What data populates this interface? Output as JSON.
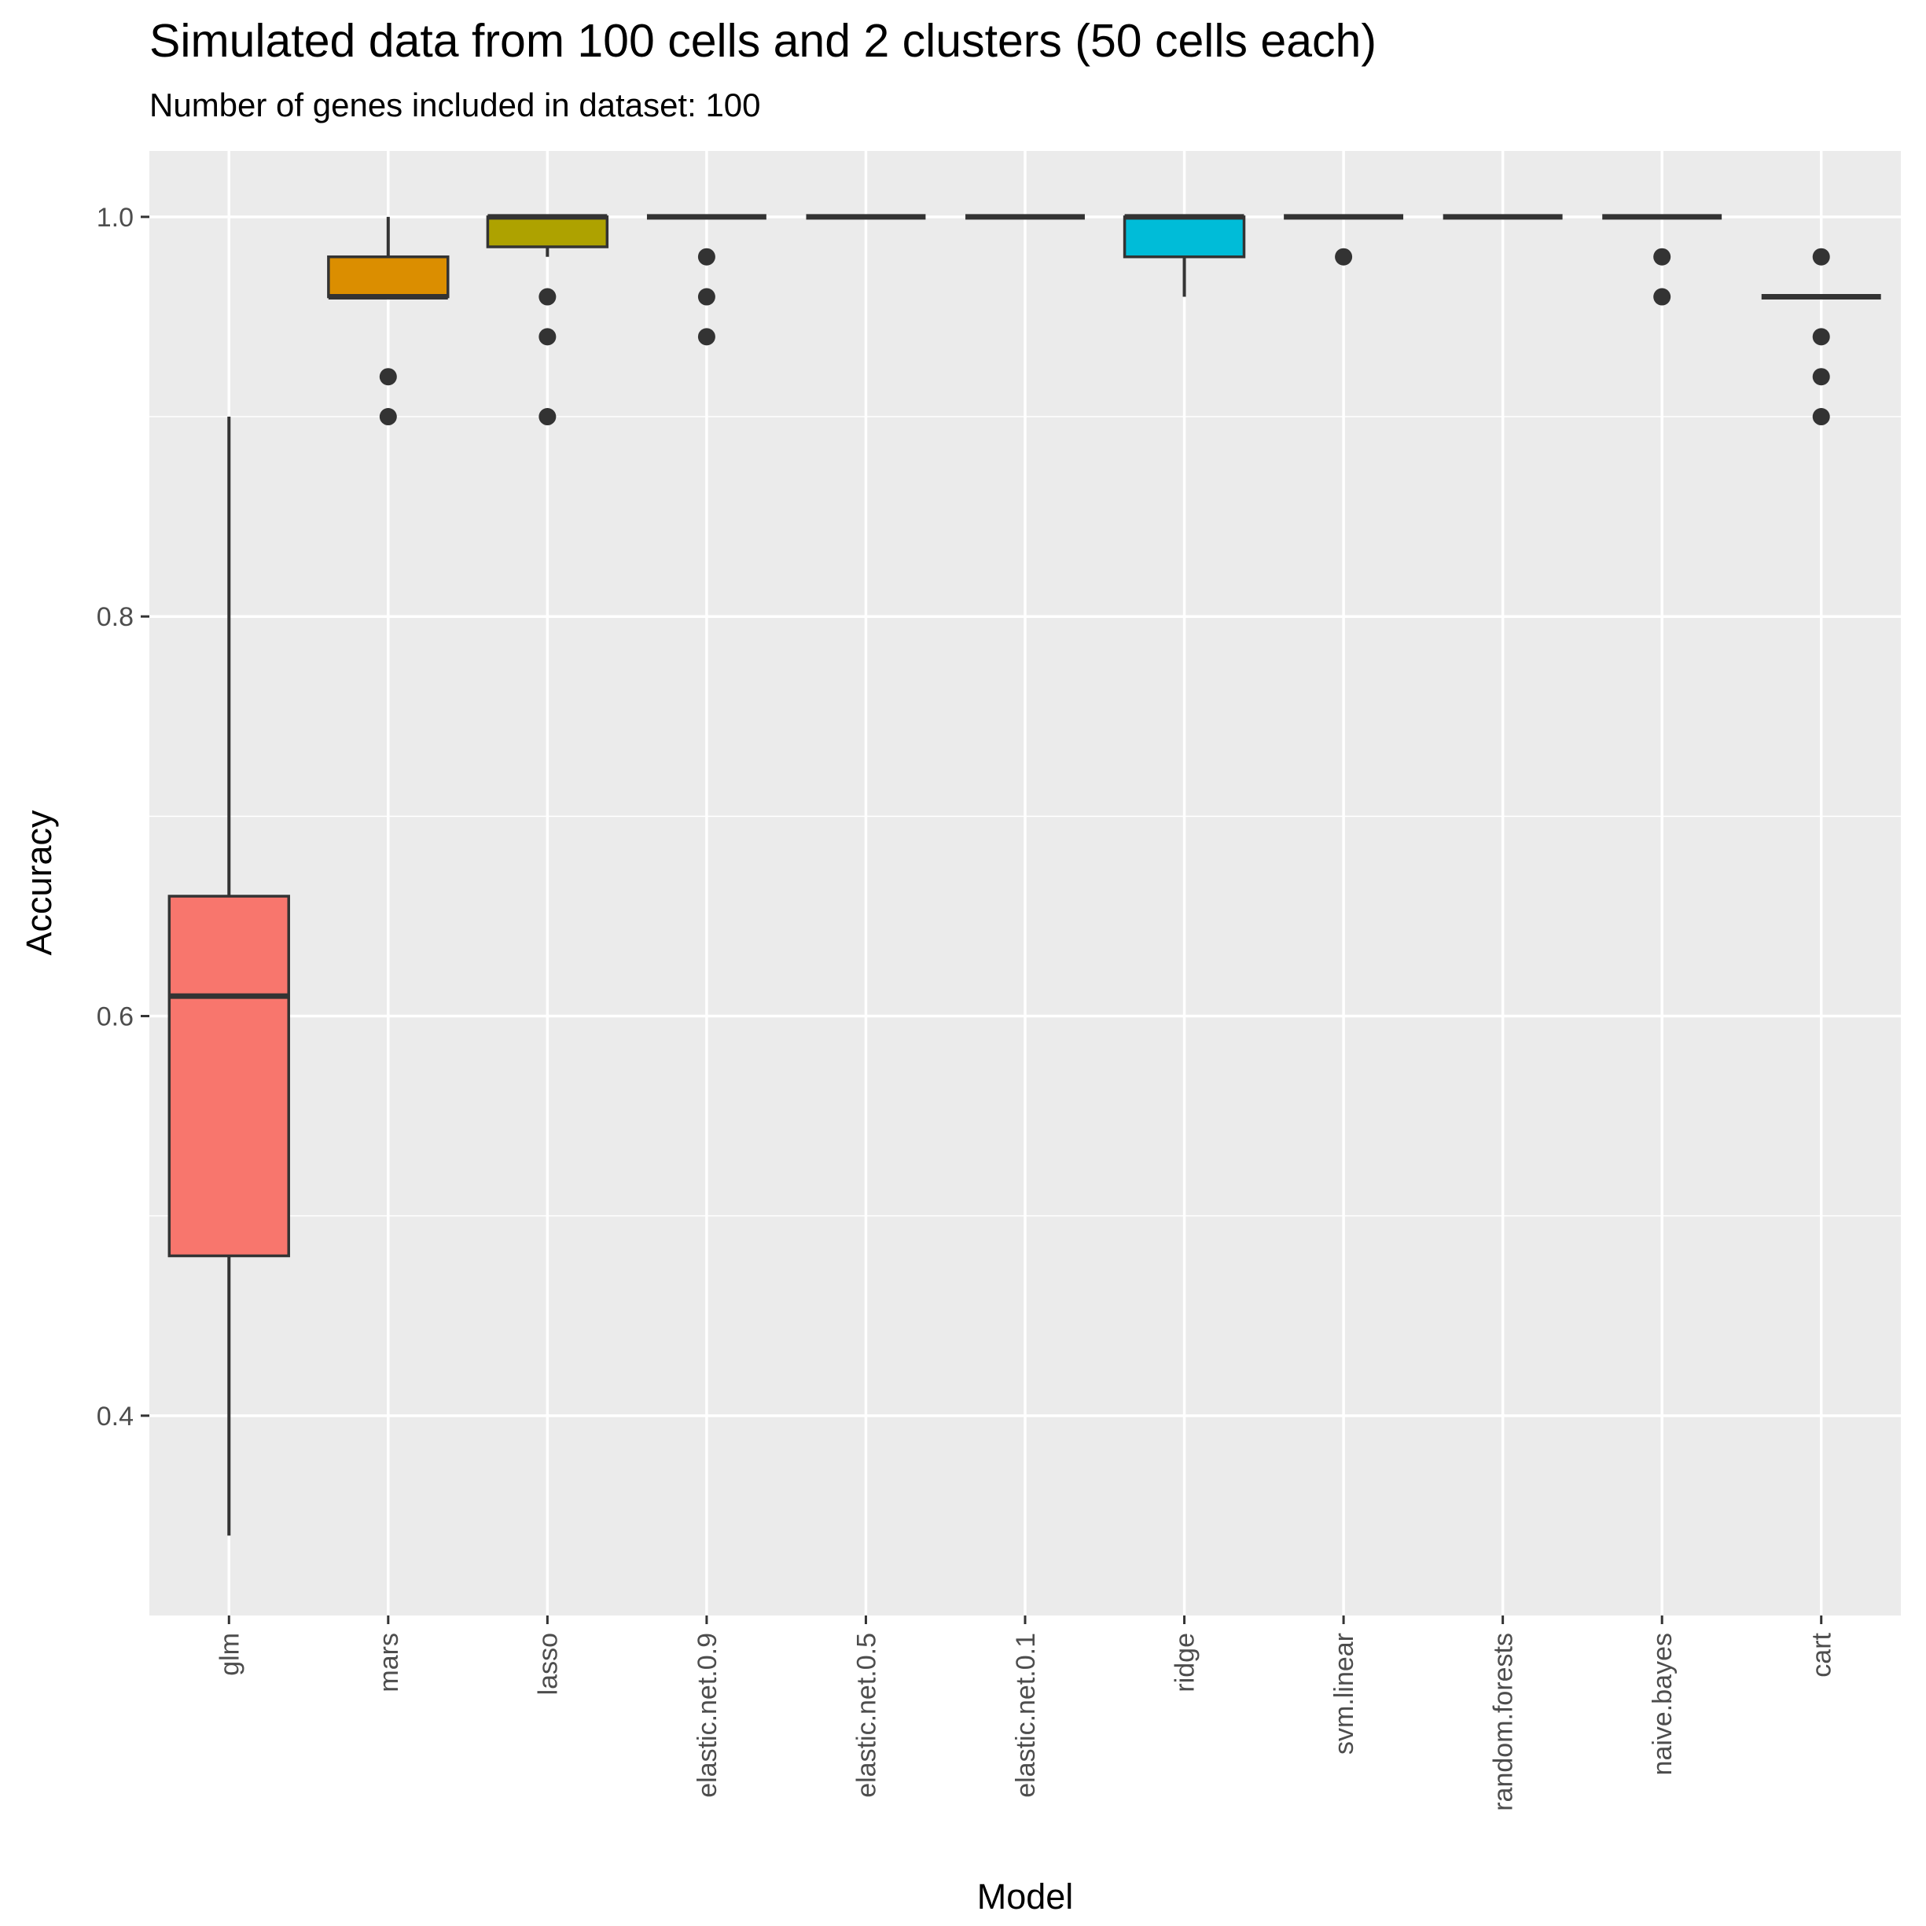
{
  "chart_data": {
    "type": "boxplot",
    "title": "Simulated data from 100 cells and 2 clusters (50 cells each)",
    "subtitle": "Number of genes included in dataset: 100",
    "xlabel": "Model",
    "ylabel": "Accuracy",
    "ylim": [
      0.3,
      1.033
    ],
    "yticks": [
      0.4,
      0.6,
      0.8,
      1.0
    ],
    "ytick_labels": [
      "0.4",
      "0.6",
      "0.8",
      "1.0"
    ],
    "grid": true,
    "legend": "none",
    "categories": [
      "glm",
      "mars",
      "lasso",
      "elastic.net.0.9",
      "elastic.net.0.5",
      "elastic.net.0.1",
      "ridge",
      "svm.linear",
      "random.forests",
      "naive.bayes",
      "cart"
    ],
    "boxes": [
      {
        "category": "glm",
        "min": 0.34,
        "q1": 0.48,
        "median": 0.61,
        "q3": 0.66,
        "max": 0.9,
        "outliers": [],
        "color": "#F8766D"
      },
      {
        "category": "mars",
        "min": 0.96,
        "q1": 0.96,
        "median": 0.96,
        "q3": 0.98,
        "max": 1.0,
        "outliers": [
          0.92,
          0.9
        ],
        "color": "#DB8E00"
      },
      {
        "category": "lasso",
        "min": 0.98,
        "q1": 0.985,
        "median": 1.0,
        "q3": 1.0,
        "max": 1.0,
        "outliers": [
          0.96,
          0.94,
          0.9
        ],
        "color": "#AEA200"
      },
      {
        "category": "elastic.net.0.9",
        "min": 1.0,
        "q1": 1.0,
        "median": 1.0,
        "q3": 1.0,
        "max": 1.0,
        "outliers": [
          0.98,
          0.96,
          0.94
        ],
        "color": "#5EB300"
      },
      {
        "category": "elastic.net.0.5",
        "min": 1.0,
        "q1": 1.0,
        "median": 1.0,
        "q3": 1.0,
        "max": 1.0,
        "outliers": [],
        "color": "#00BA38"
      },
      {
        "category": "elastic.net.0.1",
        "min": 1.0,
        "q1": 1.0,
        "median": 1.0,
        "q3": 1.0,
        "max": 1.0,
        "outliers": [],
        "color": "#00BF92"
      },
      {
        "category": "ridge",
        "min": 0.96,
        "q1": 0.98,
        "median": 1.0,
        "q3": 1.0,
        "max": 1.0,
        "outliers": [],
        "color": "#00BCD8"
      },
      {
        "category": "svm.linear",
        "min": 1.0,
        "q1": 1.0,
        "median": 1.0,
        "q3": 1.0,
        "max": 1.0,
        "outliers": [
          0.98
        ],
        "color": "#00A5FF"
      },
      {
        "category": "random.forests",
        "min": 1.0,
        "q1": 1.0,
        "median": 1.0,
        "q3": 1.0,
        "max": 1.0,
        "outliers": [],
        "color": "#7F96FF"
      },
      {
        "category": "naive.bayes",
        "min": 1.0,
        "q1": 1.0,
        "median": 1.0,
        "q3": 1.0,
        "max": 1.0,
        "outliers": [
          0.98,
          0.96
        ],
        "color": "#DF70F8"
      },
      {
        "category": "cart",
        "min": 0.96,
        "q1": 0.96,
        "median": 0.96,
        "q3": 0.96,
        "max": 0.96,
        "outliers": [
          0.98,
          0.94,
          0.92,
          0.9
        ],
        "color": "#FF63B6"
      }
    ]
  }
}
